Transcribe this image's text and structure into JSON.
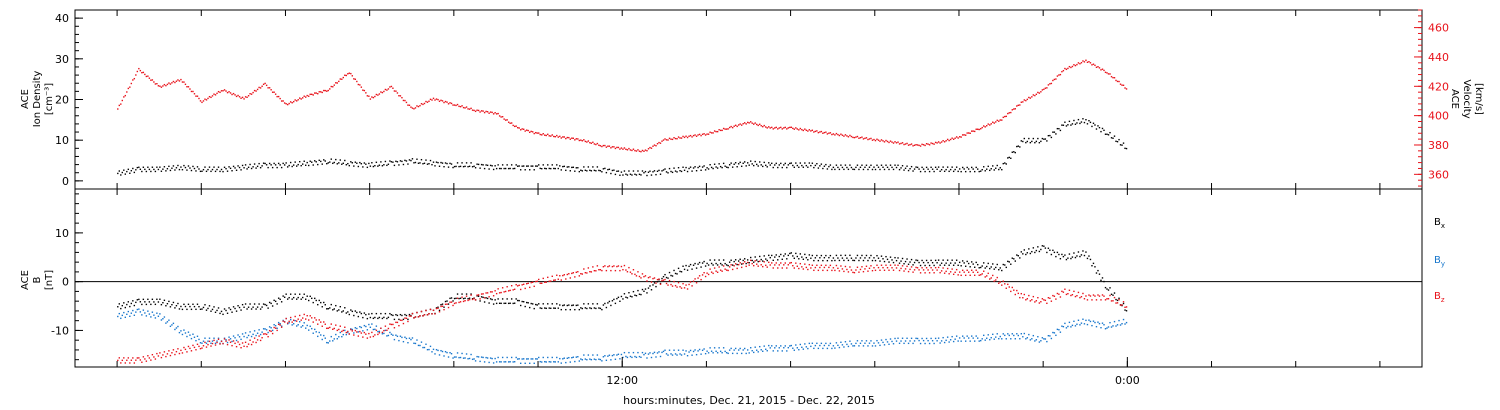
{
  "chart_data": [
    {
      "type": "scatter",
      "panel": "top",
      "ylabel_left": [
        "ACE",
        "Ion Density",
        "[cm⁻³]"
      ],
      "ylabel_right": [
        "ACE",
        "Velocity",
        "[km/s]"
      ],
      "ylim": [
        -2,
        42
      ],
      "yticks": [
        "0",
        "10",
        "20",
        "30",
        "40"
      ],
      "ylim_right": [
        350,
        472
      ],
      "yticks_right": [
        "360",
        "380",
        "400",
        "420",
        "440",
        "460"
      ],
      "series": [
        {
          "color": "#000000",
          "axis": "left",
          "x": [
            0,
            0.5,
            1,
            1.5,
            2,
            2.5,
            3,
            3.5,
            4,
            4.5,
            5,
            5.5,
            6,
            6.5,
            7,
            7.5,
            8,
            8.5,
            9,
            9.5,
            10,
            10.5,
            11,
            11.5,
            12,
            12.5,
            13,
            13.5,
            14,
            14.5,
            15,
            15.5,
            16,
            16.5,
            17,
            17.5,
            18,
            18.5,
            19,
            19.5,
            20,
            20.5,
            21,
            21.5,
            22,
            22.5,
            23,
            23.5,
            24
          ],
          "y": [
            2,
            3,
            3,
            3.5,
            3,
            3,
            3.5,
            4,
            4,
            4.5,
            5,
            4.5,
            4,
            4.5,
            5,
            4.5,
            4,
            4,
            3.5,
            3.5,
            3.5,
            3.5,
            3,
            3,
            2,
            2,
            2.5,
            3,
            3.5,
            4,
            4.5,
            4,
            4,
            4,
            3.5,
            3.5,
            3.5,
            3.5,
            3,
            3,
            3,
            3,
            3.5,
            10,
            10,
            14,
            15,
            12,
            8
          ]
        },
        {
          "color": "#e8121a",
          "axis": "right",
          "x": [
            0,
            0.5,
            1,
            1.5,
            2,
            2.5,
            3,
            3.5,
            4,
            4.5,
            5,
            5.5,
            6,
            6.5,
            7,
            7.5,
            8,
            8.5,
            9,
            9.5,
            10,
            10.5,
            11,
            11.5,
            12,
            12.5,
            13,
            13.5,
            14,
            14.5,
            15,
            15.5,
            16,
            16.5,
            17,
            17.5,
            18,
            18.5,
            19,
            19.5,
            20,
            20.5,
            21,
            21.5,
            22,
            22.5,
            23,
            23.5,
            24
          ],
          "y": [
            405,
            432,
            420,
            425,
            410,
            418,
            412,
            422,
            408,
            414,
            418,
            430,
            412,
            420,
            405,
            412,
            408,
            404,
            402,
            392,
            388,
            386,
            384,
            380,
            378,
            376,
            384,
            386,
            388,
            392,
            396,
            392,
            392,
            390,
            388,
            386,
            384,
            382,
            380,
            382,
            386,
            392,
            398,
            410,
            418,
            432,
            438,
            430,
            418
          ]
        }
      ]
    },
    {
      "type": "scatter",
      "panel": "bottom",
      "ylabel_left": [
        "ACE",
        "B",
        "[nT]"
      ],
      "ylim": [
        -17.5,
        19
      ],
      "yticks": [
        "-10",
        "0",
        "10"
      ],
      "reference_line": 0,
      "series": [
        {
          "name": "B",
          "subscript": "x",
          "color": "#000000",
          "x": [
            0,
            0.5,
            1,
            1.5,
            2,
            2.5,
            3,
            3.5,
            4,
            4.5,
            5,
            5.5,
            6,
            6.5,
            7,
            7.5,
            8,
            8.5,
            9,
            9.5,
            10,
            10.5,
            11,
            11.5,
            12,
            12.5,
            13,
            13.5,
            14,
            14.5,
            15,
            15.5,
            16,
            16.5,
            17,
            17.5,
            18,
            18.5,
            19,
            19.5,
            20,
            20.5,
            21,
            21.5,
            22,
            22.5,
            23,
            23.5,
            24
          ],
          "y": [
            -5,
            -4,
            -4,
            -5,
            -5,
            -6,
            -5,
            -5,
            -3,
            -3,
            -5,
            -6,
            -7,
            -7,
            -7,
            -6,
            -3,
            -3,
            -4,
            -4,
            -5,
            -5,
            -5,
            -5,
            -3,
            -2,
            1,
            3,
            4,
            4,
            4.5,
            5,
            5.5,
            5,
            5,
            5,
            5,
            4.5,
            4,
            4,
            4,
            3.5,
            3,
            6,
            7,
            5,
            6,
            -1,
            -6
          ]
        },
        {
          "name": "B",
          "subscript": "y",
          "color": "#1776cc",
          "x": [
            0,
            0.5,
            1,
            1.5,
            2,
            2.5,
            3,
            3.5,
            4,
            4.5,
            5,
            5.5,
            6,
            6.5,
            7,
            7.5,
            8,
            8.5,
            9,
            9.5,
            10,
            10.5,
            11,
            11.5,
            12,
            12.5,
            13,
            13.5,
            14,
            14.5,
            15,
            15.5,
            16,
            16.5,
            17,
            17.5,
            18,
            18.5,
            19,
            19.5,
            20,
            20.5,
            21,
            21.5,
            22,
            22.5,
            23,
            23.5,
            24
          ],
          "y": [
            -7,
            -6,
            -7,
            -10,
            -12,
            -12,
            -11,
            -10,
            -8,
            -9,
            -12,
            -10,
            -9,
            -11,
            -12,
            -14,
            -15,
            -15.5,
            -16,
            -16,
            -16,
            -16,
            -15.5,
            -15.5,
            -15,
            -15,
            -14.5,
            -14.5,
            -14,
            -14,
            -14,
            -13.5,
            -13.5,
            -13,
            -13,
            -12.5,
            -12.5,
            -12,
            -12,
            -12,
            -11.5,
            -11.5,
            -11,
            -11,
            -12,
            -9,
            -8,
            -9,
            -8
          ]
        },
        {
          "name": "B",
          "subscript": "z",
          "color": "#e8121a",
          "x": [
            0,
            0.5,
            1,
            1.5,
            2,
            2.5,
            3,
            3.5,
            4,
            4.5,
            5,
            5.5,
            6,
            6.5,
            7,
            7.5,
            8,
            8.5,
            9,
            9.5,
            10,
            10.5,
            11,
            11.5,
            12,
            12.5,
            13,
            13.5,
            14,
            14.5,
            15,
            15.5,
            16,
            16.5,
            17,
            17.5,
            18,
            18.5,
            19,
            19.5,
            20,
            20.5,
            21,
            21.5,
            22,
            22.5,
            23,
            23.5,
            24
          ],
          "y": [
            -16,
            -16,
            -15,
            -14,
            -13,
            -12,
            -13,
            -11,
            -8,
            -7,
            -9,
            -10,
            -11,
            -9,
            -7,
            -6,
            -4,
            -3,
            -2,
            -1,
            0,
            1,
            2,
            3,
            3,
            1,
            0,
            -1,
            2,
            3,
            4,
            3.5,
            3.5,
            3,
            3,
            2.5,
            3,
            3,
            2.5,
            2.5,
            2,
            2,
            0,
            -3,
            -4,
            -2,
            -3,
            -3,
            -5
          ]
        }
      ]
    }
  ],
  "x_axis": {
    "xlim": [
      -1,
      31
    ],
    "tick_labels": [
      {
        "x": 12,
        "label": "12:00"
      },
      {
        "x": 24,
        "label": "0:00"
      }
    ],
    "minor_tick_step": 2,
    "xlabel": "hours:minutes, Dec. 21, 2015 - Dec. 22, 2015"
  },
  "colors": {
    "black": "#000000",
    "red": "#e8121a",
    "blue": "#1776cc"
  }
}
